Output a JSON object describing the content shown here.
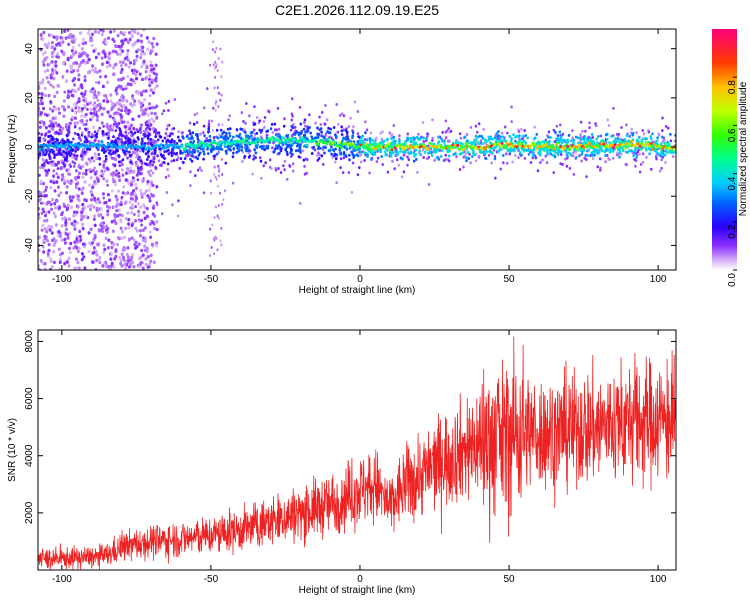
{
  "title": "C2E1.2026.112.09.19.E25",
  "chart_data": [
    {
      "type": "heatmap",
      "title": "C2E1.2026.112.09.19.E25",
      "xlabel": "Height of straight line (km)",
      "ylabel": "Frequency (Hz)",
      "xlim": [
        -108,
        106
      ],
      "ylim": [
        -50,
        48
      ],
      "x_ticks": [
        "-100",
        "-50",
        "0",
        "50",
        "100"
      ],
      "y_ticks": [
        "40",
        "20",
        "0",
        "-20",
        "-40"
      ],
      "colorbar": {
        "label": "Normalized spectral amplitude",
        "range": [
          0,
          1
        ],
        "ticks": [
          "0.0",
          "0.2",
          "0.4",
          "0.6",
          "0.8"
        ],
        "colors": [
          "#ffffff",
          "#b06cf0",
          "#3a00ff",
          "#0050ff",
          "#00c8ff",
          "#00ff80",
          "#40ff00",
          "#c8ff00",
          "#ffb000",
          "#ff3000",
          "#ff0080"
        ]
      },
      "ridge_center_hz": {
        "x": [
          -108,
          -90,
          -70,
          -50,
          -30,
          -10,
          0,
          20,
          40,
          50,
          70,
          90,
          106
        ],
        "y": [
          0,
          1,
          0,
          1,
          3,
          2,
          0,
          0,
          0,
          1,
          0,
          1,
          0
        ]
      }
    },
    {
      "type": "line",
      "xlabel": "Height of straight line (km)",
      "ylabel": "SNR (10 * v/v)",
      "xlim": [
        -108,
        106
      ],
      "ylim": [
        0,
        8400
      ],
      "x_ticks": [
        "-100",
        "-50",
        "0",
        "50",
        "100"
      ],
      "y_ticks": [
        "2000",
        "4000",
        "6000",
        "8000"
      ],
      "color": "#ee2222",
      "series": [
        {
          "x": [
            -108,
            -100,
            -90,
            -85,
            -80,
            -70,
            -60,
            -50,
            -40,
            -30,
            -20,
            -10,
            0,
            5,
            10,
            15,
            20,
            30,
            40,
            45,
            48,
            50,
            55,
            60,
            70,
            80,
            90,
            100,
            106
          ],
          "y": [
            400,
            400,
            450,
            500,
            800,
            1000,
            1100,
            1200,
            1400,
            1700,
            2000,
            2300,
            2800,
            3000,
            2200,
            3000,
            3300,
            4000,
            4500,
            4600,
            4500,
            4800,
            4900,
            4800,
            4900,
            5000,
            5200,
            5300,
            5200
          ]
        }
      ]
    }
  ]
}
